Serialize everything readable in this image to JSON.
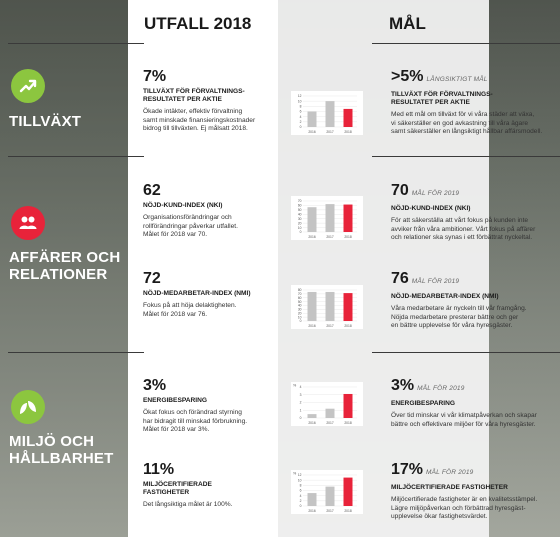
{
  "headers": {
    "outcome": "UTFALL 2018",
    "goal": "MÅL"
  },
  "categories": [
    {
      "label_lines": [
        "TILLVÄXT"
      ],
      "icon": "trend-up-icon",
      "color": "#8cc63f"
    },
    {
      "label_lines": [
        "AFFÄRER OCH",
        "RELATIONER"
      ],
      "icon": "people-icon",
      "color": "#e8233a"
    },
    {
      "label_lines": [
        "MILJÖ OCH",
        "HÅLLBARHET"
      ],
      "icon": "leaf-icon",
      "color": "#8cc63f"
    }
  ],
  "metrics": [
    {
      "outcome": {
        "value": "7%",
        "title_lines": [
          "TILLVÄXT FÖR FÖRVALTNINGS-",
          "RESULTATET PER AKTIE"
        ],
        "desc_lines": [
          "Ökade intäkter, effektiv förvaltning",
          "samt minskade finansieringskostnader",
          "bidrog till tillväxten. Ej målsatt 2018."
        ]
      },
      "goal": {
        "value": ">5%",
        "tag": "LÅNGSIKTIGT MÅL",
        "title_lines": [
          "TILLVÄXT FÖR FÖRVALTNINGS-",
          "RESULTATET PER AKTIE"
        ],
        "desc_lines": [
          "Med ett mål om tillväxt för vi våra städer att växa,",
          "vi säkerställer en god avkastning till våra ägare",
          "samt säkerställer en långsiktigt hållbar affärsmodell."
        ]
      }
    },
    {
      "outcome": {
        "value": "62",
        "title_lines": [
          "NÖJD-KUND-INDEX (NKI)"
        ],
        "desc_lines": [
          "Organisationsförändringar och",
          "rollförändringar påverkar utfallet.",
          "Målet för 2018 var 70."
        ]
      },
      "goal": {
        "value": "70",
        "tag": "MÅL FÖR 2019",
        "title_lines": [
          "NÖJD-KUND-INDEX (NKI)"
        ],
        "desc_lines": [
          "För att säkerställa att vårt fokus på kunden inte",
          "avviker från våra ambitioner. Vårt fokus på affärer",
          "och relationer ska synas i ett förbättrat nyckeltal."
        ]
      }
    },
    {
      "outcome": {
        "value": "72",
        "title_lines": [
          "NÖJD-MEDARBETAR-INDEX (NMI)"
        ],
        "desc_lines": [
          "Fokus på att höja delaktigheten.",
          "Målet för 2018 var 76."
        ]
      },
      "goal": {
        "value": "76",
        "tag": "MÅL FÖR 2019",
        "title_lines": [
          "NÖJD-MEDARBETAR-INDEX (NMI)"
        ],
        "desc_lines": [
          "Våra medarbetare är nyckeln till vår framgång.",
          "Nöjda medarbetare presterar bättre och ger",
          "en bättre upplevelse för våra hyresgäster."
        ]
      }
    },
    {
      "outcome": {
        "value": "3%",
        "title_lines": [
          "ENERGIBESPARING"
        ],
        "desc_lines": [
          "Ökat fokus och förändrad styrning",
          "har bidragit till minskad förbrukning.",
          "Målet för 2018 var 3%."
        ]
      },
      "goal": {
        "value": "3%",
        "tag": "MÅL FÖR 2019",
        "title_lines": [
          "ENERGIBESPARING"
        ],
        "desc_lines": [
          "Över tid minskar vi vår klimatpåverkan och skapar",
          "bättre och effektivare miljöer för våra hyresgäster."
        ]
      }
    },
    {
      "outcome": {
        "value": "11%",
        "title_lines": [
          "MILJÖCERTIFIERADE",
          "FASTIGHETER"
        ],
        "desc_lines": [
          "Det långsiktiga målet är 100%."
        ]
      },
      "goal": {
        "value": "17%",
        "tag": "MÅL FÖR 2019",
        "title_lines": [
          "MILJÖCERTIFIERADE FASTIGHETER"
        ],
        "desc_lines": [
          "Miljöcertifierade fastigheter är en kvalitetsstämpel.",
          "Lägre miljöpåverkan och förbättrad hyresgäst-",
          "upplevelse ökar fastighetsvärdet."
        ]
      }
    }
  ],
  "chart_data": [
    {
      "type": "bar",
      "categories": [
        "2016",
        "2017",
        "2018"
      ],
      "values": [
        6,
        10,
        7
      ],
      "ylim": [
        0,
        12
      ],
      "yticks": [
        "0",
        "2",
        "4",
        "6",
        "8",
        "10",
        "12"
      ],
      "colors": [
        "#c4c4c4",
        "#c4c4c4",
        "#e8233a"
      ]
    },
    {
      "type": "bar",
      "categories": [
        "2016",
        "2017",
        "2018"
      ],
      "values": [
        56,
        63,
        62
      ],
      "ylim": [
        0,
        70
      ],
      "yticks": [
        "0",
        "10",
        "20",
        "30",
        "40",
        "50",
        "60",
        "70"
      ],
      "colors": [
        "#c4c4c4",
        "#c4c4c4",
        "#e8233a"
      ]
    },
    {
      "type": "bar",
      "categories": [
        "2016",
        "2017",
        "2018"
      ],
      "values": [
        75,
        75,
        72
      ],
      "ylim": [
        0,
        80
      ],
      "yticks": [
        "0",
        "10",
        "20",
        "30",
        "40",
        "50",
        "60",
        "70",
        "80"
      ],
      "colors": [
        "#c4c4c4",
        "#c4c4c4",
        "#e8233a"
      ]
    },
    {
      "type": "bar",
      "ylabel": "%",
      "categories": [
        "2016",
        "2017",
        "2018"
      ],
      "values": [
        0.5,
        1.2,
        3.1
      ],
      "ylim": [
        0,
        4
      ],
      "yticks": [
        "0",
        "1",
        "2",
        "3",
        "4"
      ],
      "colors": [
        "#c4c4c4",
        "#c4c4c4",
        "#e8233a"
      ]
    },
    {
      "type": "bar",
      "ylabel": "%",
      "categories": [
        "2016",
        "2017",
        "2018"
      ],
      "values": [
        5,
        7.5,
        11
      ],
      "ylim": [
        0,
        12
      ],
      "yticks": [
        "0",
        "2",
        "4",
        "6",
        "8",
        "10",
        "12"
      ],
      "colors": [
        "#c4c4c4",
        "#c4c4c4",
        "#e8233a"
      ]
    }
  ]
}
